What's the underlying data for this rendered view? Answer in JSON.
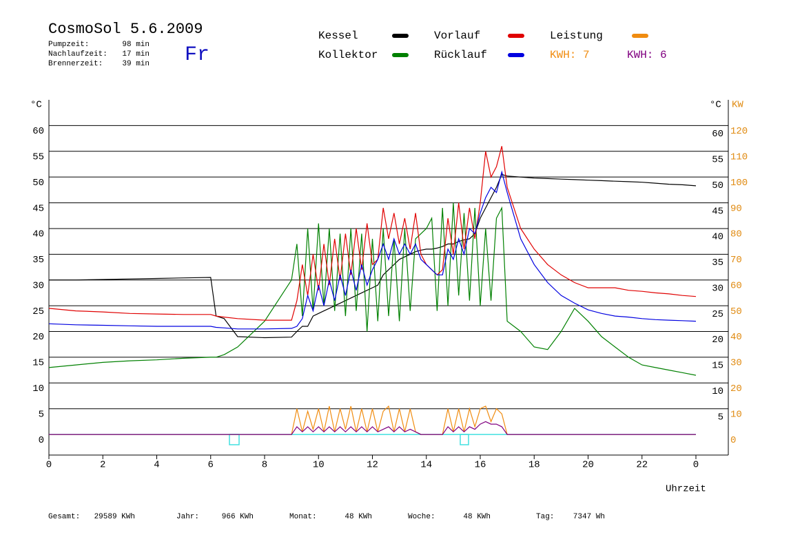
{
  "chart_data": {
    "type": "line",
    "title": "CosmoSol 5.6.2009",
    "day": "Fr",
    "info": [
      {
        "label": "Pumpzeit:",
        "value": "98 min"
      },
      {
        "label": "Nachlaufzeit:",
        "value": "17 min"
      },
      {
        "label": "Brennerzeit:",
        "value": "39 min"
      }
    ],
    "xlabel": "Uhrzeit",
    "ylabel": "°C",
    "y2label": "KW",
    "right_ylabel": "°C",
    "xlim": [
      0,
      24
    ],
    "xticks": [
      0,
      2,
      4,
      6,
      8,
      10,
      12,
      14,
      16,
      18,
      20,
      22,
      {
        "value": 24,
        "label": "0"
      }
    ],
    "ylim": [
      -4,
      65
    ],
    "yticks": [
      0,
      5,
      10,
      15,
      20,
      25,
      30,
      35,
      40,
      45,
      50,
      55,
      60
    ],
    "right_yticks": [
      5,
      10,
      15,
      20,
      25,
      30,
      35,
      40,
      45,
      50,
      55,
      60
    ],
    "y2lim": [
      -8,
      130
    ],
    "y2ticks": [
      0,
      10,
      20,
      30,
      40,
      50,
      60,
      70,
      80,
      90,
      100,
      110,
      120
    ],
    "y2color": "#e08a10",
    "grid": true,
    "zero_line_color": "#40e0e0",
    "x": [
      0,
      1,
      2,
      3,
      4,
      5,
      6,
      6.2,
      6.5,
      7,
      8,
      9,
      9.2,
      9.4,
      9.6,
      9.8,
      10,
      10.2,
      10.4,
      10.6,
      10.8,
      11,
      11.2,
      11.4,
      11.6,
      11.8,
      12,
      12.2,
      12.4,
      12.6,
      12.8,
      13,
      13.2,
      13.4,
      13.6,
      13.8,
      14,
      14.2,
      14.4,
      14.6,
      14.8,
      15,
      15.2,
      15.4,
      15.6,
      15.8,
      16,
      16.2,
      16.4,
      16.6,
      16.8,
      17,
      17.5,
      18,
      18.5,
      19,
      19.5,
      20,
      20.5,
      21,
      21.5,
      22,
      22.5,
      23,
      23.5,
      24
    ],
    "series": [
      {
        "name": "Kessel",
        "color": "#000000",
        "values": [
          30,
          30,
          30.1,
          30.2,
          30.3,
          30.4,
          30.5,
          23,
          22.5,
          19,
          18.8,
          18.9,
          20,
          21,
          21,
          23,
          23.5,
          24,
          24.5,
          25,
          25.5,
          26,
          26.5,
          27,
          27.5,
          28,
          28.5,
          29,
          31,
          32,
          33,
          34,
          34.5,
          35,
          35.5,
          35.8,
          36,
          36,
          36.2,
          36.5,
          37,
          37,
          37.5,
          37.8,
          38,
          39,
          42,
          44,
          46,
          48,
          50.5,
          50.2,
          50,
          49.8,
          49.7,
          49.6,
          49.5,
          49.4,
          49.3,
          49.2,
          49.1,
          49,
          48.8,
          48.6,
          48.5,
          48.3
        ]
      },
      {
        "name": "Kollektor",
        "color": "#008000",
        "values": [
          13,
          13.5,
          14,
          14.3,
          14.5,
          14.8,
          15,
          15,
          15.5,
          17,
          22,
          30,
          37,
          23,
          40,
          24,
          41,
          25,
          40,
          24,
          39,
          23,
          40,
          24,
          39,
          20,
          38,
          22,
          40,
          23,
          38,
          22,
          40,
          24,
          38,
          39,
          40,
          42,
          24,
          44,
          25,
          45,
          27,
          43,
          26,
          44,
          25,
          40,
          26,
          42,
          44,
          22,
          20,
          17,
          16.5,
          20,
          24.5,
          22,
          19,
          17,
          15,
          13.5,
          13,
          12.5,
          12,
          11.5
        ]
      },
      {
        "name": "Vorlauf",
        "color": "#e00000",
        "values": [
          24.5,
          24,
          23.8,
          23.5,
          23.4,
          23.3,
          23.3,
          23,
          22.8,
          22.5,
          22.2,
          22.2,
          26,
          33,
          27,
          35,
          28,
          37,
          29,
          38,
          30,
          39,
          31,
          40,
          32,
          41,
          33,
          34,
          44,
          38,
          43,
          37,
          42,
          36,
          43,
          35,
          33,
          32,
          31,
          32,
          42,
          35,
          45,
          36,
          44,
          38,
          45,
          55,
          50,
          52,
          56,
          48,
          40,
          36,
          33,
          31,
          29.5,
          28.5,
          28.5,
          28.5,
          28,
          27.8,
          27.5,
          27.3,
          27,
          26.8
        ]
      },
      {
        "name": "Rücklauf",
        "color": "#0000e0",
        "values": [
          21.5,
          21.3,
          21.2,
          21.1,
          21,
          21,
          21,
          20.8,
          20.7,
          20.5,
          20.5,
          20.6,
          21,
          22.5,
          27,
          24,
          29,
          25,
          30,
          26,
          31,
          27,
          32,
          28,
          33,
          29,
          32,
          34,
          37,
          34,
          38,
          35,
          37,
          35,
          37,
          34,
          33,
          32,
          31,
          31,
          36,
          34,
          38,
          35,
          40,
          39,
          43,
          46,
          48,
          47,
          51,
          47,
          38,
          33,
          29.5,
          27,
          25.5,
          24.2,
          23.5,
          23,
          22.8,
          22.5,
          22.3,
          22.2,
          22.1,
          22
        ]
      },
      {
        "name": "Leistung",
        "kwh": "KWH: 7",
        "color": "#f08c10",
        "axis": "y2",
        "values": [
          0,
          0,
          0,
          0,
          0,
          0,
          0,
          0,
          0,
          0,
          0,
          0,
          10,
          1,
          9,
          2,
          10,
          1,
          11,
          1,
          10,
          2,
          11,
          1,
          10,
          1,
          10,
          1,
          9,
          11,
          1,
          10,
          1,
          10,
          1,
          0,
          0,
          0,
          0,
          0,
          10,
          1,
          10,
          1,
          10,
          3,
          10,
          11,
          5,
          10,
          8,
          0,
          0,
          0,
          0,
          0,
          0,
          0,
          0,
          0,
          0,
          0,
          0,
          0,
          0,
          0
        ]
      },
      {
        "kwh": "KWH: 6",
        "color": "#800080",
        "axis": "y2",
        "values": [
          0,
          0,
          0,
          0,
          0,
          0,
          0,
          0,
          0,
          0,
          0,
          0,
          3,
          1,
          3,
          1,
          3,
          1,
          3,
          1,
          3,
          1,
          3,
          1,
          3,
          1,
          3,
          1,
          2,
          3,
          1,
          3,
          1,
          2,
          1,
          0,
          0,
          0,
          0,
          0,
          3,
          1,
          3,
          1,
          3,
          2,
          4,
          5,
          4,
          4,
          3,
          0,
          0,
          0,
          0,
          0,
          0,
          0,
          0,
          0,
          0,
          0,
          0,
          0,
          0,
          0
        ]
      }
    ],
    "footer": [
      {
        "label": "Gesamt:",
        "value": "29589 KWh"
      },
      {
        "label": "Jahr:",
        "value": "966 KWh"
      },
      {
        "label": "Monat:",
        "value": "48 KWh"
      },
      {
        "label": "Woche:",
        "value": "48 KWh"
      },
      {
        "label": "Tag:",
        "value": "7347 Wh"
      }
    ]
  }
}
